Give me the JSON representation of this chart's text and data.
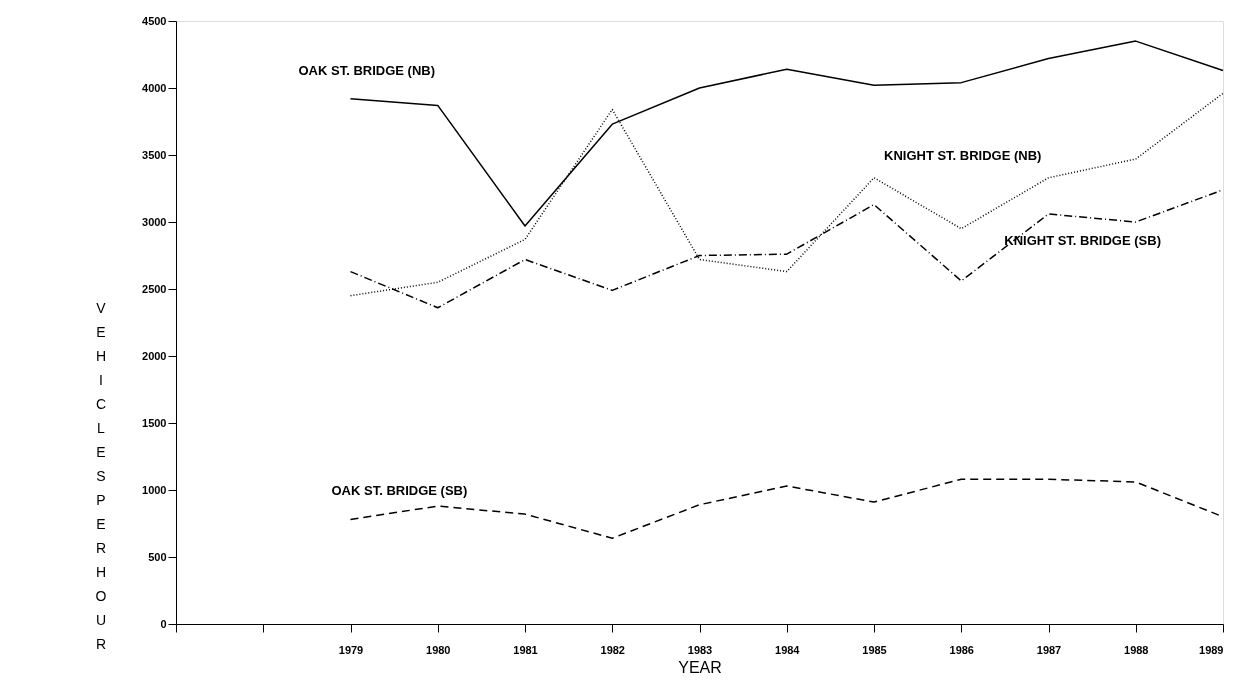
{
  "chart_data": {
    "type": "line",
    "xlabel": "YEAR",
    "ylabel": "VEHICLES PER HOUR",
    "x": [
      1979,
      1980,
      1981,
      1982,
      1983,
      1984,
      1985,
      1986,
      1987,
      1988,
      1989
    ],
    "xlim": [
      1977,
      1989
    ],
    "xticks": [
      {
        "value": 1977,
        "label": null
      },
      {
        "value": 1978,
        "label": null
      },
      1979,
      1980,
      1981,
      1982,
      1983,
      1984,
      1985,
      1986,
      1987,
      1988,
      1989
    ],
    "ylim": [
      0,
      4500
    ],
    "yticks": [
      0,
      500,
      1000,
      1500,
      2000,
      2500,
      3000,
      3500,
      4000,
      4500
    ],
    "grid": false,
    "legend": false,
    "marker": "none",
    "series": [
      {
        "name": "OAK ST. BRIDGE (NB)",
        "color": "#000000",
        "line_style": "solid",
        "values": [
          3920,
          3870,
          2970,
          3730,
          4000,
          4140,
          4020,
          4040,
          4220,
          4350,
          4130
        ]
      },
      {
        "name": "KNIGHT ST. BRIDGE (NB)",
        "color": "#000000",
        "line_style": "dotted",
        "values": [
          2450,
          2550,
          2870,
          3840,
          2720,
          2630,
          3330,
          2950,
          3330,
          3470,
          3960
        ]
      },
      {
        "name": "KNIGHT ST. BRIDGE (SB)",
        "color": "#000000",
        "line_style": "dashdot",
        "values": [
          2630,
          2360,
          2720,
          2490,
          2750,
          2760,
          3130,
          2560,
          3060,
          3000,
          3240
        ]
      },
      {
        "name": "OAK ST. BRIDGE  (SB)",
        "color": "#000000",
        "line_style": "dashed",
        "values": [
          780,
          880,
          820,
          640,
          890,
          1030,
          910,
          1080,
          1080,
          1060,
          800
        ]
      }
    ]
  }
}
